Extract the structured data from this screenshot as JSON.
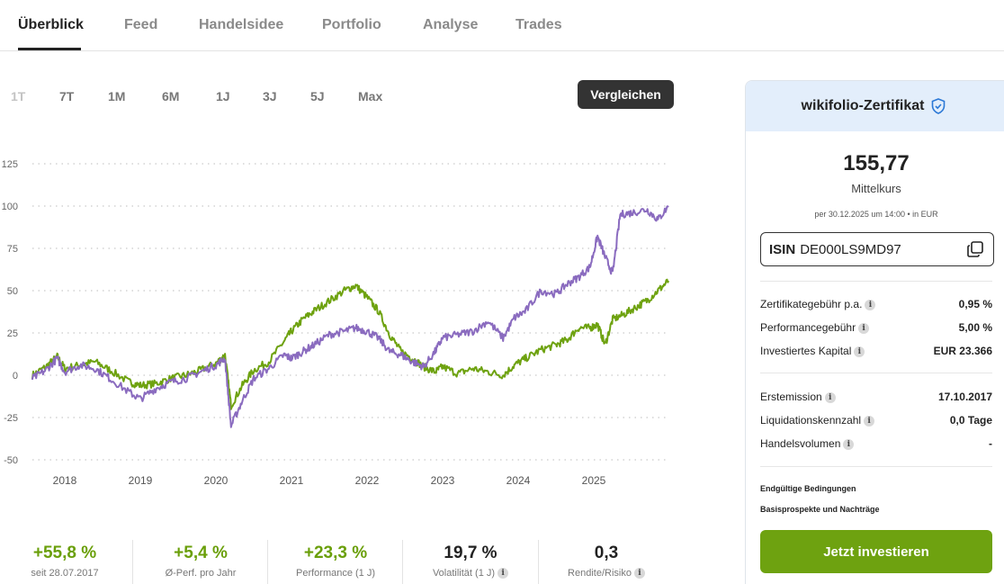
{
  "tabs": [
    {
      "label": "Überblick",
      "active": true
    },
    {
      "label": "Feed",
      "active": false
    },
    {
      "label": "Handelsidee",
      "active": false
    },
    {
      "label": "Portfolio",
      "active": false
    },
    {
      "label": "Analyse",
      "active": false
    },
    {
      "label": "Trades",
      "active": false
    }
  ],
  "timeframes": [
    {
      "label": "1T",
      "disabled": true
    },
    {
      "label": "7T",
      "disabled": false
    },
    {
      "label": "1M",
      "disabled": false
    },
    {
      "label": "6M",
      "disabled": false
    },
    {
      "label": "1J",
      "disabled": false
    },
    {
      "label": "3J",
      "disabled": false
    },
    {
      "label": "5J",
      "disabled": false
    },
    {
      "label": "Max",
      "disabled": false
    }
  ],
  "compare_label": "Vergleichen",
  "chart_data": {
    "type": "line",
    "y_ticks": [
      125,
      100,
      75,
      50,
      25,
      0,
      -25,
      -50
    ],
    "ylim": [
      -50,
      125
    ],
    "x_ticks": [
      "2018",
      "2019",
      "2020",
      "2021",
      "2022",
      "2023",
      "2024",
      "2025"
    ],
    "grid": true,
    "series": [
      {
        "color": "#6ea210",
        "points": [
          [
            2017.57,
            0
          ],
          [
            2017.75,
            5
          ],
          [
            2017.9,
            11
          ],
          [
            2018.0,
            4
          ],
          [
            2018.2,
            6
          ],
          [
            2018.4,
            8
          ],
          [
            2018.6,
            3
          ],
          [
            2018.85,
            -4
          ],
          [
            2019.0,
            -6
          ],
          [
            2019.2,
            -5
          ],
          [
            2019.4,
            -2
          ],
          [
            2019.6,
            0
          ],
          [
            2019.8,
            3
          ],
          [
            2020.0,
            7
          ],
          [
            2020.12,
            12
          ],
          [
            2020.2,
            -18
          ],
          [
            2020.35,
            -6
          ],
          [
            2020.5,
            3
          ],
          [
            2020.7,
            8
          ],
          [
            2020.9,
            20
          ],
          [
            2021.0,
            26
          ],
          [
            2021.15,
            33
          ],
          [
            2021.3,
            38
          ],
          [
            2021.5,
            44
          ],
          [
            2021.7,
            50
          ],
          [
            2021.85,
            53
          ],
          [
            2022.0,
            46
          ],
          [
            2022.15,
            38
          ],
          [
            2022.3,
            24
          ],
          [
            2022.45,
            14
          ],
          [
            2022.6,
            10
          ],
          [
            2022.75,
            5
          ],
          [
            2022.9,
            2
          ],
          [
            2023.0,
            5
          ],
          [
            2023.2,
            1
          ],
          [
            2023.4,
            4
          ],
          [
            2023.6,
            2
          ],
          [
            2023.8,
            0
          ],
          [
            2023.95,
            6
          ],
          [
            2024.1,
            10
          ],
          [
            2024.3,
            15
          ],
          [
            2024.5,
            18
          ],
          [
            2024.65,
            21
          ],
          [
            2024.8,
            28
          ],
          [
            2024.95,
            28
          ],
          [
            2025.05,
            30
          ],
          [
            2025.15,
            18
          ],
          [
            2025.25,
            33
          ],
          [
            2025.4,
            36
          ],
          [
            2025.55,
            40
          ],
          [
            2025.7,
            44
          ],
          [
            2025.85,
            50
          ],
          [
            2025.99,
            55.8
          ]
        ]
      },
      {
        "color": "#8a6bbf",
        "points": [
          [
            2017.57,
            -2
          ],
          [
            2017.75,
            3
          ],
          [
            2017.9,
            10
          ],
          [
            2018.0,
            2
          ],
          [
            2018.2,
            6
          ],
          [
            2018.4,
            4
          ],
          [
            2018.6,
            -2
          ],
          [
            2018.85,
            -10
          ],
          [
            2019.0,
            -14
          ],
          [
            2019.2,
            -8
          ],
          [
            2019.4,
            -4
          ],
          [
            2019.6,
            -2
          ],
          [
            2019.8,
            2
          ],
          [
            2020.0,
            6
          ],
          [
            2020.12,
            10
          ],
          [
            2020.2,
            -30
          ],
          [
            2020.35,
            -15
          ],
          [
            2020.5,
            -2
          ],
          [
            2020.7,
            4
          ],
          [
            2020.9,
            12
          ],
          [
            2021.0,
            10
          ],
          [
            2021.15,
            14
          ],
          [
            2021.3,
            18
          ],
          [
            2021.5,
            24
          ],
          [
            2021.7,
            26
          ],
          [
            2021.85,
            28
          ],
          [
            2022.0,
            26
          ],
          [
            2022.15,
            22
          ],
          [
            2022.3,
            14
          ],
          [
            2022.45,
            12
          ],
          [
            2022.6,
            8
          ],
          [
            2022.75,
            5
          ],
          [
            2022.9,
            14
          ],
          [
            2023.0,
            22
          ],
          [
            2023.2,
            24
          ],
          [
            2023.4,
            26
          ],
          [
            2023.6,
            32
          ],
          [
            2023.8,
            22
          ],
          [
            2023.95,
            34
          ],
          [
            2024.1,
            38
          ],
          [
            2024.3,
            50
          ],
          [
            2024.5,
            48
          ],
          [
            2024.65,
            54
          ],
          [
            2024.8,
            58
          ],
          [
            2024.95,
            64
          ],
          [
            2025.05,
            82
          ],
          [
            2025.15,
            70
          ],
          [
            2025.25,
            60
          ],
          [
            2025.35,
            95
          ],
          [
            2025.5,
            96
          ],
          [
            2025.7,
            98
          ],
          [
            2025.85,
            92
          ],
          [
            2025.99,
            100
          ]
        ]
      }
    ]
  },
  "stats": [
    {
      "value": "+55,8 %",
      "label": "seit 28.07.2017",
      "green": true,
      "info": false
    },
    {
      "value": "+5,4 %",
      "label": "Ø-Perf. pro Jahr",
      "green": true,
      "info": false
    },
    {
      "value": "+23,3 %",
      "label": "Performance (1 J)",
      "green": true,
      "info": false
    },
    {
      "value": "19,7 %",
      "label": "Volatilität (1 J)",
      "green": false,
      "info": true
    },
    {
      "value": "0,3",
      "label": "Rendite/Risiko",
      "green": false,
      "info": true
    }
  ],
  "card": {
    "title": "wikifolio-Zertifikat",
    "price": "155,77",
    "price_label": "Mittelkurs",
    "price_date": "per 30.12.2025 um 14:00 • in EUR",
    "isin_label": "ISIN",
    "isin_value": "DE000LS9MD97",
    "rows_a": [
      {
        "label": "Zertifikategebühr p.a.",
        "value": "0,95 %"
      },
      {
        "label": "Performancegebühr",
        "value": "5,00 %"
      },
      {
        "label": "Investiertes Kapital",
        "value": "EUR 23.366"
      }
    ],
    "rows_b": [
      {
        "label": "Erstemission",
        "value": "17.10.2017"
      },
      {
        "label": "Liquidationskennzahl",
        "value": "0,0 Tage"
      },
      {
        "label": "Handelsvolumen",
        "value": "-"
      }
    ],
    "links": [
      "Endgültige Bedingungen",
      "Basisprospekte und Nachträge"
    ],
    "invest_label": "Jetzt investieren"
  }
}
